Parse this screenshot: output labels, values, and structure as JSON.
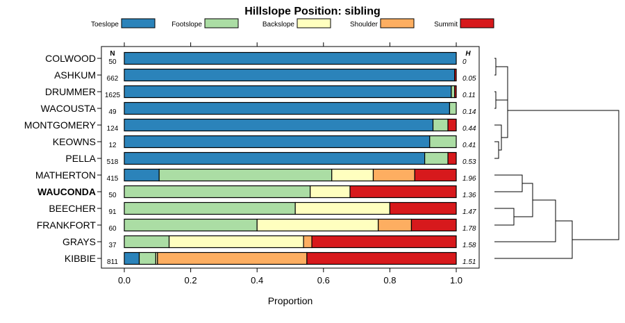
{
  "chart_data": {
    "type": "bar",
    "orientation": "horizontal",
    "stacked": true,
    "title": "Hillslope Position: sibling",
    "xlabel": "Proportion",
    "ylabel": "",
    "xlim": [
      0,
      1
    ],
    "x_ticks": [
      "0.0",
      "0.2",
      "0.4",
      "0.6",
      "0.8",
      "1.0"
    ],
    "legend_position": "top",
    "n_header": "N",
    "h_header": "H",
    "highlight_category": "WAUCONDA",
    "categories": [
      "COLWOOD",
      "ASHKUM",
      "DRUMMER",
      "WACOUSTA",
      "MONTGOMERY",
      "KEOWNS",
      "PELLA",
      "MATHERTON",
      "WAUCONDA",
      "BEECHER",
      "FRANKFORT",
      "GRAYS",
      "KIBBIE"
    ],
    "n": [
      "50",
      "662",
      "1625",
      "49",
      "124",
      "12",
      "518",
      "415",
      "50",
      "91",
      "60",
      "37",
      "811"
    ],
    "h": [
      "0",
      "0.05",
      "0.11",
      "0.14",
      "0.44",
      "0.41",
      "0.53",
      "1.96",
      "1.36",
      "1.47",
      "1.78",
      "1.58",
      "1.51"
    ],
    "series": [
      {
        "name": "Toeslope",
        "color": "#2b83ba",
        "values": [
          1.0,
          0.995,
          0.985,
          0.98,
          0.93,
          0.92,
          0.905,
          0.105,
          0.0,
          0.0,
          0.0,
          0.0,
          0.045
        ]
      },
      {
        "name": "Footslope",
        "color": "#abdda4",
        "values": [
          0.0,
          0.0,
          0.01,
          0.02,
          0.045,
          0.08,
          0.07,
          0.52,
          0.56,
          0.515,
          0.4,
          0.135,
          0.05
        ]
      },
      {
        "name": "Backslope",
        "color": "#ffffbf",
        "values": [
          0.0,
          0.0,
          0.0,
          0.0,
          0.0,
          0.0,
          0.0,
          0.125,
          0.12,
          0.285,
          0.365,
          0.405,
          0.005
        ]
      },
      {
        "name": "Shoulder",
        "color": "#fdae61",
        "values": [
          0.0,
          0.0,
          0.0,
          0.0,
          0.0,
          0.0,
          0.0,
          0.125,
          0.0,
          0.0,
          0.1,
          0.025,
          0.45
        ]
      },
      {
        "name": "Summit",
        "color": "#d7191c",
        "values": [
          0.0,
          0.005,
          0.005,
          0.0,
          0.025,
          0.0,
          0.025,
          0.125,
          0.32,
          0.2,
          0.135,
          0.435,
          0.45
        ]
      }
    ]
  }
}
